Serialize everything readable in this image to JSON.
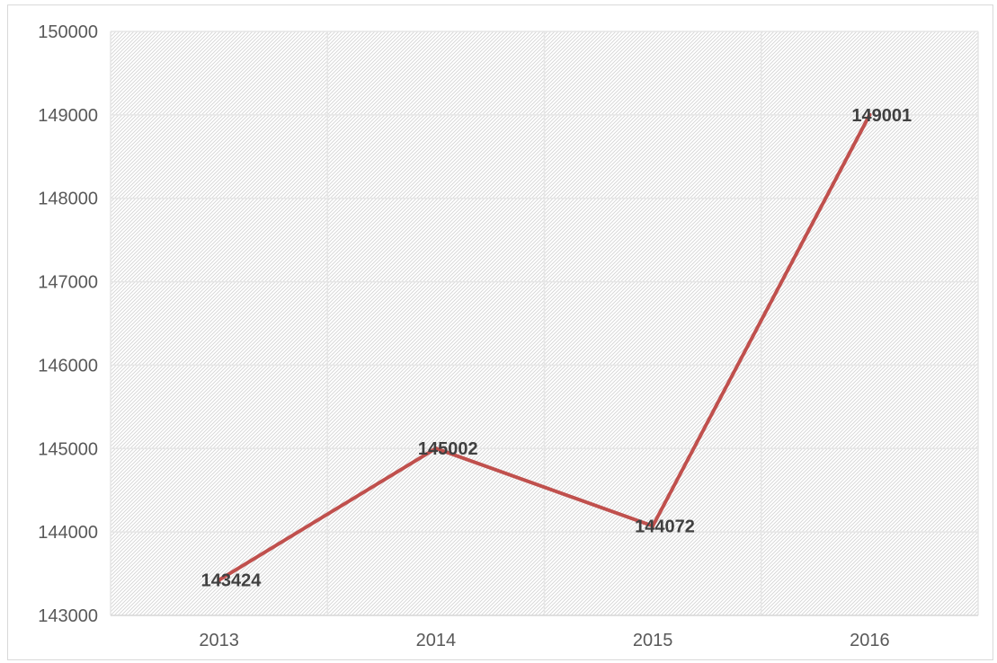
{
  "chart_data": {
    "type": "line",
    "categories": [
      "2013",
      "2014",
      "2015",
      "2016"
    ],
    "series": [
      {
        "values": [
          143424,
          145002,
          144072,
          149001
        ],
        "color": "#c0504d",
        "data_labels": [
          "143424",
          "145002",
          "144072",
          "149001"
        ]
      }
    ],
    "ylim": [
      143000,
      150000
    ],
    "yticks": [
      143000,
      144000,
      145000,
      146000,
      147000,
      148000,
      149000,
      150000
    ],
    "ytick_labels": [
      "143000",
      "144000",
      "145000",
      "146000",
      "147000",
      "148000",
      "149000",
      "150000"
    ],
    "title": "",
    "xlabel": "",
    "ylabel": "",
    "grid": true,
    "plot_background": "diagonal-hatch",
    "colors": {
      "line": "#c0504d",
      "grid": "#e6e6e6",
      "hatch": "#d9d9d9",
      "tick_text": "#595959",
      "label_text": "#404040"
    }
  }
}
